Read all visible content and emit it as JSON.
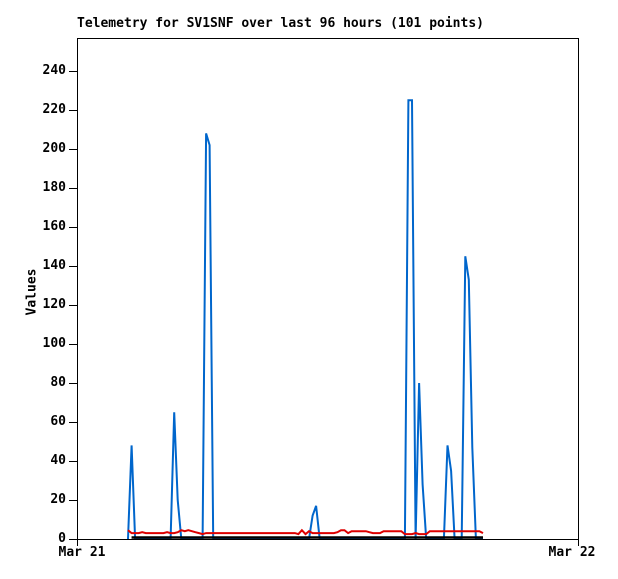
{
  "chart_data": {
    "type": "line",
    "title": "Telemetry for SV1SNF over last 96 hours (101 points)",
    "ylabel": "Values",
    "x_tick_labels": [
      "Mar 21",
      "Mar 22"
    ],
    "y_ticks": [
      0,
      20,
      40,
      60,
      80,
      100,
      120,
      140,
      160,
      180,
      200,
      220,
      240
    ],
    "ylim": [
      0,
      257
    ],
    "point_count": 101,
    "grid": false,
    "legend": "none",
    "frame_color": "#000000",
    "background_color": "#ffffff",
    "data_span_note": "101 points plotted between ~10% and ~81% of the Mar21-Mar22 axis",
    "series": [
      {
        "name": "blue-telemetry-channel",
        "color": "#0066CC",
        "values": [
          0,
          48,
          0,
          0,
          0,
          0,
          0,
          0,
          0,
          0,
          0,
          0,
          0,
          65,
          20,
          0,
          0,
          0,
          0,
          0,
          0,
          0,
          208,
          202,
          0,
          0,
          0,
          0,
          0,
          0,
          0,
          0,
          0,
          0,
          0,
          0,
          0,
          0,
          0,
          0,
          0,
          0,
          0,
          0,
          0,
          0,
          0,
          0,
          0,
          0,
          0,
          0,
          12,
          17,
          0,
          0,
          0,
          0,
          0,
          0,
          0,
          0,
          0,
          0,
          0,
          0,
          0,
          0,
          0,
          0,
          0,
          0,
          0,
          0,
          0,
          0,
          0,
          0,
          0,
          225,
          225,
          0,
          80,
          28,
          0,
          0,
          0,
          0,
          0,
          0,
          48,
          35,
          0,
          0,
          0,
          145,
          133,
          47,
          0,
          0,
          0
        ]
      },
      {
        "name": "red-telemetry-channel",
        "color": "#DD0000",
        "values": [
          4.5,
          3,
          3,
          3,
          3.5,
          3,
          3,
          3,
          3,
          3,
          3,
          3.5,
          3,
          3,
          3.5,
          4.5,
          4,
          4.5,
          4,
          3.5,
          3,
          2.5,
          3,
          3,
          3,
          3,
          3,
          3,
          3,
          3,
          3,
          3,
          3,
          3,
          3,
          3,
          3,
          3,
          3,
          3,
          3,
          3,
          3,
          3,
          3,
          3,
          3,
          3,
          2.5,
          4.5,
          2.5,
          4,
          3,
          3,
          3,
          3,
          3,
          3,
          3,
          3.5,
          4.5,
          4.5,
          3,
          4,
          4,
          4,
          4,
          4,
          3.5,
          3,
          3,
          3,
          4,
          4,
          4,
          4,
          4,
          4,
          2.5,
          2.5,
          2.5,
          3,
          2.5,
          2.5,
          2.5,
          4,
          4,
          4,
          4,
          4,
          4,
          4,
          4,
          4,
          4,
          4,
          4,
          4,
          4,
          4,
          3
        ]
      },
      {
        "name": "black-telemetry-channel",
        "color": "#000000",
        "constant_value": 0.8,
        "start_index": 1,
        "end_index": 100
      }
    ]
  }
}
